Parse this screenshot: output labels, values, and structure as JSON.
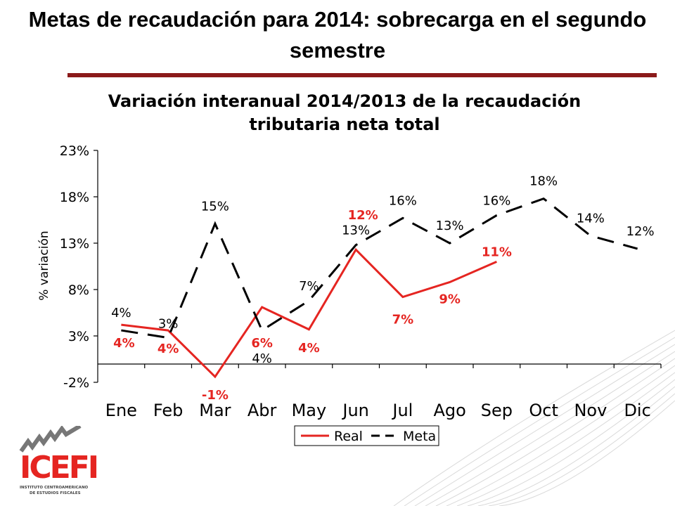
{
  "slide": {
    "title": "Metas de recaudación para 2014: sobrecarga en el segundo semestre"
  },
  "logo": {
    "word": "ICEFI",
    "subtitle_line1": "INSTITUTO CENTROAMERICANO",
    "subtitle_line2": "DE ESTUDIOS FISCALES"
  },
  "chart_data": {
    "type": "line",
    "title_line1": "Variación interanual 2014/2013 de la recaudación",
    "title_line2": "tributaria neta total",
    "ylabel": "% variación",
    "xlabel": "",
    "categories": [
      "Ene",
      "Feb",
      "Mar",
      "Abr",
      "May",
      "Jun",
      "Jul",
      "Ago",
      "Sep",
      "Oct",
      "Nov",
      "Dic"
    ],
    "ylim": [
      -2,
      23
    ],
    "yticks": [
      -2,
      3,
      8,
      13,
      18,
      23
    ],
    "ytick_labels": [
      "-2%",
      "3%",
      "8%",
      "13%",
      "18%",
      "23%"
    ],
    "grid": false,
    "legend_position": "bottom",
    "series": [
      {
        "name": "Real",
        "color": "#e52521",
        "dash": "solid",
        "values": [
          4.2,
          3.6,
          -1.4,
          6.1,
          3.7,
          12.3,
          7.2,
          8.8,
          11.0,
          null,
          null,
          null
        ],
        "labels": [
          "4%",
          "4%",
          "-1%",
          "6%",
          "4%",
          "12%",
          "7%",
          "9%",
          "11%",
          "",
          "",
          ""
        ]
      },
      {
        "name": "Meta",
        "color": "#000000",
        "dash": "dashed",
        "values": [
          3.6,
          2.8,
          15.1,
          3.6,
          6.8,
          12.8,
          15.7,
          13.0,
          16.0,
          17.8,
          13.8,
          12.4
        ],
        "labels": [
          "4%",
          "3%",
          "15%",
          "4%",
          "7%",
          "13%",
          "16%",
          "13%",
          "16%",
          "18%",
          "14%",
          "12%"
        ]
      }
    ]
  }
}
